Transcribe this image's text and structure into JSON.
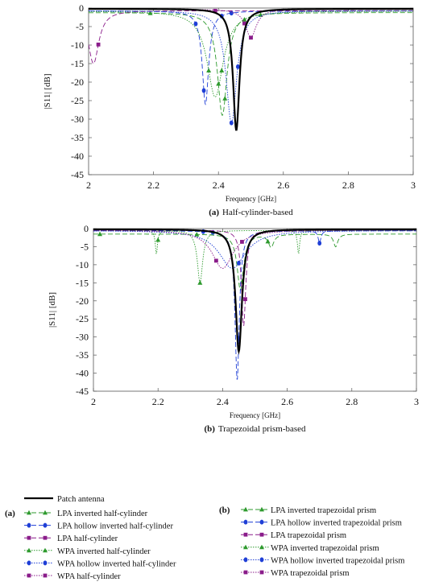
{
  "chart_data": [
    {
      "type": "line",
      "tag": "a",
      "caption_tag": "(a)",
      "caption": "Half-cylinder-based",
      "xlabel": "Frequency [GHz]",
      "ylabel": "|S11| [dB]",
      "xlim": [
        2,
        3
      ],
      "ylim": [
        -45,
        0
      ],
      "xticks": [
        2,
        2.2,
        2.4,
        2.6,
        2.8,
        3
      ],
      "yticks": [
        0,
        -5,
        -10,
        -15,
        -20,
        -25,
        -30,
        -35,
        -40,
        -45
      ],
      "series": [
        {
          "name": "Patch antenna",
          "color": "#000000",
          "dash": "",
          "width": 2.2,
          "marker": "none",
          "resonances": [
            {
              "f": 2.455,
              "depth": -33,
              "width": 0.012
            }
          ],
          "baseline": -0.2
        },
        {
          "name": "LPA inverted half-cylinder",
          "color": "#2e9a2e",
          "dash": "6,3",
          "width": 0.9,
          "marker": "triangle",
          "resonances": [
            {
              "f": 2.412,
              "depth": -29,
              "width": 0.018
            }
          ],
          "baseline": -1.2,
          "markers_x": [
            2.19,
            2.4,
            2.42,
            2.53
          ]
        },
        {
          "name": "LPA hollow inverted half-cylinder",
          "color": "#1f3fd6",
          "dash": "6,3",
          "width": 0.9,
          "marker": "circle",
          "resonances": [
            {
              "f": 2.36,
              "depth": -26,
              "width": 0.012
            }
          ],
          "baseline": -0.8,
          "markers_x": [
            2.33,
            2.355,
            2.41,
            2.44
          ]
        },
        {
          "name": "LPA half-cylinder",
          "color": "#8a1c8a",
          "dash": "6,3",
          "width": 0.9,
          "marker": "square",
          "resonances": [
            {
              "f": 2.015,
              "depth": -15,
              "width": 0.02
            }
          ],
          "baseline": -0.7,
          "markers_x": [
            2.03,
            2.39
          ]
        },
        {
          "name": "WPA inverted half-cylinder",
          "color": "#2e9a2e",
          "dash": "1.5,1.5",
          "width": 0.9,
          "marker": "triangle",
          "resonances": [
            {
              "f": 2.39,
              "depth": -24,
              "width": 0.03
            }
          ],
          "baseline": -0.8,
          "markers_x": [
            2.37,
            2.41,
            2.48
          ]
        },
        {
          "name": "WPA hollow inverted half-cylinder",
          "color": "#1f3fd6",
          "dash": "1.5,1.5",
          "width": 0.9,
          "marker": "circle",
          "resonances": [
            {
              "f": 2.44,
              "depth": -31,
              "width": 0.02
            }
          ],
          "baseline": -0.7,
          "markers_x": [
            2.44,
            2.46
          ]
        },
        {
          "name": "WPA half-cylinder",
          "color": "#8a1c8a",
          "dash": "1.5,1.5",
          "width": 0.9,
          "marker": "square",
          "resonances": [
            {
              "f": 2.5,
              "depth": -8,
              "width": 0.02
            }
          ],
          "baseline": -0.3,
          "markers_x": [
            2.48,
            2.5
          ]
        }
      ]
    },
    {
      "type": "line",
      "tag": "b",
      "caption_tag": "(b)",
      "caption": "Trapezoidal prism-based",
      "xlabel": "Frequency [GHz]",
      "ylabel": "|S11| [dB]",
      "xlim": [
        2,
        3
      ],
      "ylim": [
        -45,
        0
      ],
      "xticks": [
        2,
        2.2,
        2.4,
        2.6,
        2.8,
        3
      ],
      "yticks": [
        0,
        -5,
        -10,
        -15,
        -20,
        -25,
        -30,
        -35,
        -40,
        -45
      ],
      "series": [
        {
          "name": "Patch antenna",
          "color": "#000000",
          "dash": "",
          "width": 2.2,
          "marker": "none",
          "resonances": [
            {
              "f": 2.45,
              "depth": -34,
              "width": 0.012
            }
          ],
          "baseline": -0.2
        },
        {
          "name": "LPA inverted trapezoidal prism",
          "color": "#2e9a2e",
          "dash": "6,3",
          "width": 0.9,
          "marker": "triangle",
          "resonances": [
            {
              "f": 2.455,
              "depth": -17,
              "width": 0.012
            },
            {
              "f": 2.55,
              "depth": -5,
              "width": 0.01
            },
            {
              "f": 2.75,
              "depth": -5,
              "width": 0.008
            }
          ],
          "baseline": -1.5,
          "markers_x": [
            2.02,
            2.32,
            2.46,
            2.54
          ]
        },
        {
          "name": "LPA hollow inverted trapezoidal prism",
          "color": "#1f3fd6",
          "dash": "6,3",
          "width": 0.9,
          "marker": "circle",
          "resonances": [
            {
              "f": 2.445,
              "depth": -42,
              "width": 0.008
            },
            {
              "f": 2.7,
              "depth": -4,
              "width": 0.005
            }
          ],
          "baseline": -0.6,
          "markers_x": [
            2.34,
            2.37,
            2.45,
            2.7
          ]
        },
        {
          "name": "LPA trapezoidal prism",
          "color": "#8a1c8a",
          "dash": "6,3",
          "width": 0.9,
          "marker": "square",
          "resonances": [
            {
              "f": 2.465,
              "depth": -27,
              "width": 0.008
            }
          ],
          "baseline": -0.4,
          "markers_x": [
            2.47
          ]
        },
        {
          "name": "WPA inverted trapezoidal prism",
          "color": "#2e9a2e",
          "dash": "1.5,1.5",
          "width": 0.9,
          "marker": "triangle",
          "resonances": [
            {
              "f": 2.195,
              "depth": -7,
              "width": 0.004
            },
            {
              "f": 2.33,
              "depth": -15,
              "width": 0.01
            },
            {
              "f": 2.635,
              "depth": -7,
              "width": 0.004
            }
          ],
          "baseline": -0.5,
          "markers_x": [
            2.2,
            2.33
          ]
        },
        {
          "name": "WPA hollow inverted trapezoidal prism",
          "color": "#1f3fd6",
          "dash": "1.5,1.5",
          "width": 0.9,
          "marker": "circle",
          "resonances": [
            {
              "f": 2.43,
              "depth": -11,
              "width": 0.05
            }
          ],
          "baseline": -0.5,
          "markers_x": [
            2.45
          ]
        },
        {
          "name": "WPA trapezoidal prism",
          "color": "#8a1c8a",
          "dash": "1.5,1.5",
          "width": 0.9,
          "marker": "square",
          "resonances": [
            {
              "f": 2.4,
              "depth": -11,
              "width": 0.04
            }
          ],
          "baseline": -0.4,
          "markers_x": [
            2.38,
            2.46
          ]
        }
      ]
    }
  ],
  "legend": {
    "patch": "Patch antenna",
    "group_a_tag": "(a)",
    "group_b_tag": "(b)",
    "group_a": [
      "LPA inverted half-cylinder",
      "LPA hollow inverted half-cylinder",
      "LPA half-cylinder",
      "WPA inverted half-cylinder",
      "WPA hollow inverted half-cylinder",
      "WPA half-cylinder"
    ],
    "group_b": [
      "LPA inverted trapezoidal prism",
      "LPA hollow inverted trapezoidal prism",
      "LPA trapezoidal prism",
      "WPA inverted trapezoidal prism",
      "WPA hollow inverted trapezoidal prism",
      "WPA trapezoidal prism"
    ]
  }
}
